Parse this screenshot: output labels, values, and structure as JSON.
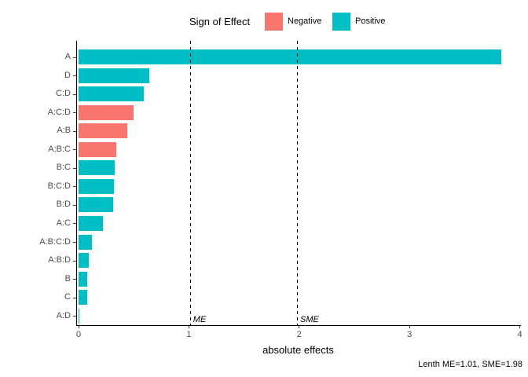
{
  "colors": {
    "negative": "#F8766D",
    "positive": "#00BFC4",
    "axis_text": "#4D4D4D",
    "axis_line": "#000000"
  },
  "legend": {
    "title": "Sign of Effect",
    "items": [
      {
        "label": "Negative",
        "color": "#F8766D"
      },
      {
        "label": "Positive",
        "color": "#00BFC4"
      }
    ]
  },
  "chart_data": {
    "type": "bar",
    "orientation": "horizontal",
    "title": "",
    "legend_title": "Sign of Effect",
    "legend_position": "top",
    "grid": false,
    "categories": [
      "A",
      "D",
      "C:D",
      "A:C:D",
      "A:B",
      "A:B:C",
      "B:C",
      "B:C:D",
      "B:D",
      "A:C",
      "A:B:C:D",
      "A:B:D",
      "B",
      "C",
      "A:D"
    ],
    "values": [
      3.83,
      0.64,
      0.59,
      0.5,
      0.44,
      0.34,
      0.33,
      0.32,
      0.31,
      0.22,
      0.12,
      0.09,
      0.08,
      0.08,
      0.01
    ],
    "signs": [
      "Positive",
      "Positive",
      "Positive",
      "Negative",
      "Negative",
      "Negative",
      "Positive",
      "Positive",
      "Positive",
      "Positive",
      "Positive",
      "Positive",
      "Positive",
      "Positive",
      "Positive"
    ],
    "xlabel": "absolute effects",
    "ylabel": "",
    "xlim": [
      0,
      4
    ],
    "xticks": [
      "0",
      "1",
      "2",
      "3",
      "4"
    ],
    "reference_lines": [
      {
        "label": "ME",
        "value": 1.01
      },
      {
        "label": "SME",
        "value": 1.98
      }
    ],
    "caption": "Lenth ME=1.01, SME=1.98"
  }
}
